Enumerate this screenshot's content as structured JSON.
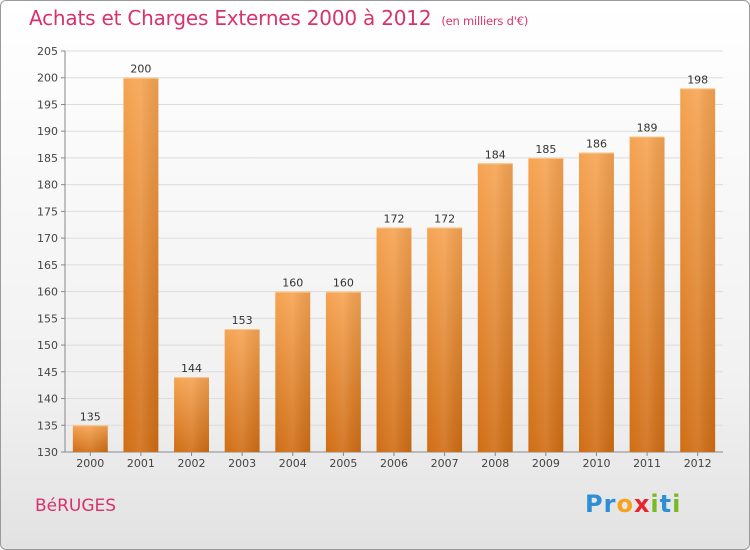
{
  "header": {
    "title": "Achats et Charges Externes 2000 à 2012",
    "subtitle": "(en milliers d'€)"
  },
  "commune": "BéRUGES",
  "logo": {
    "letters": [
      {
        "ch": "P",
        "color": "#2f8fd6"
      },
      {
        "ch": "r",
        "color": "#2f8fd6"
      },
      {
        "ch": "o",
        "color": "#f7a21b"
      },
      {
        "ch": "x",
        "color": "#e8242e"
      },
      {
        "ch": "i",
        "color": "#79b928"
      },
      {
        "ch": "t",
        "color": "#2f8fd6"
      },
      {
        "ch": "i",
        "color": "#79b928"
      }
    ]
  },
  "chart_data": {
    "type": "bar",
    "title": "Achats et Charges Externes 2000 à 2012",
    "subtitle": "(en milliers d'€)",
    "categories": [
      "2000",
      "2001",
      "2002",
      "2003",
      "2004",
      "2005",
      "2006",
      "2007",
      "2008",
      "2009",
      "2010",
      "2011",
      "2012"
    ],
    "values": [
      135,
      200,
      144,
      153,
      160,
      160,
      172,
      172,
      184,
      185,
      186,
      189,
      198
    ],
    "ylim": [
      130,
      205
    ],
    "yticks": [
      130,
      135,
      140,
      145,
      150,
      155,
      160,
      165,
      170,
      175,
      180,
      185,
      190,
      195,
      200,
      205
    ],
    "grid": true,
    "bar_color_top": "#f6a452",
    "bar_color_bottom": "#d06d14"
  }
}
